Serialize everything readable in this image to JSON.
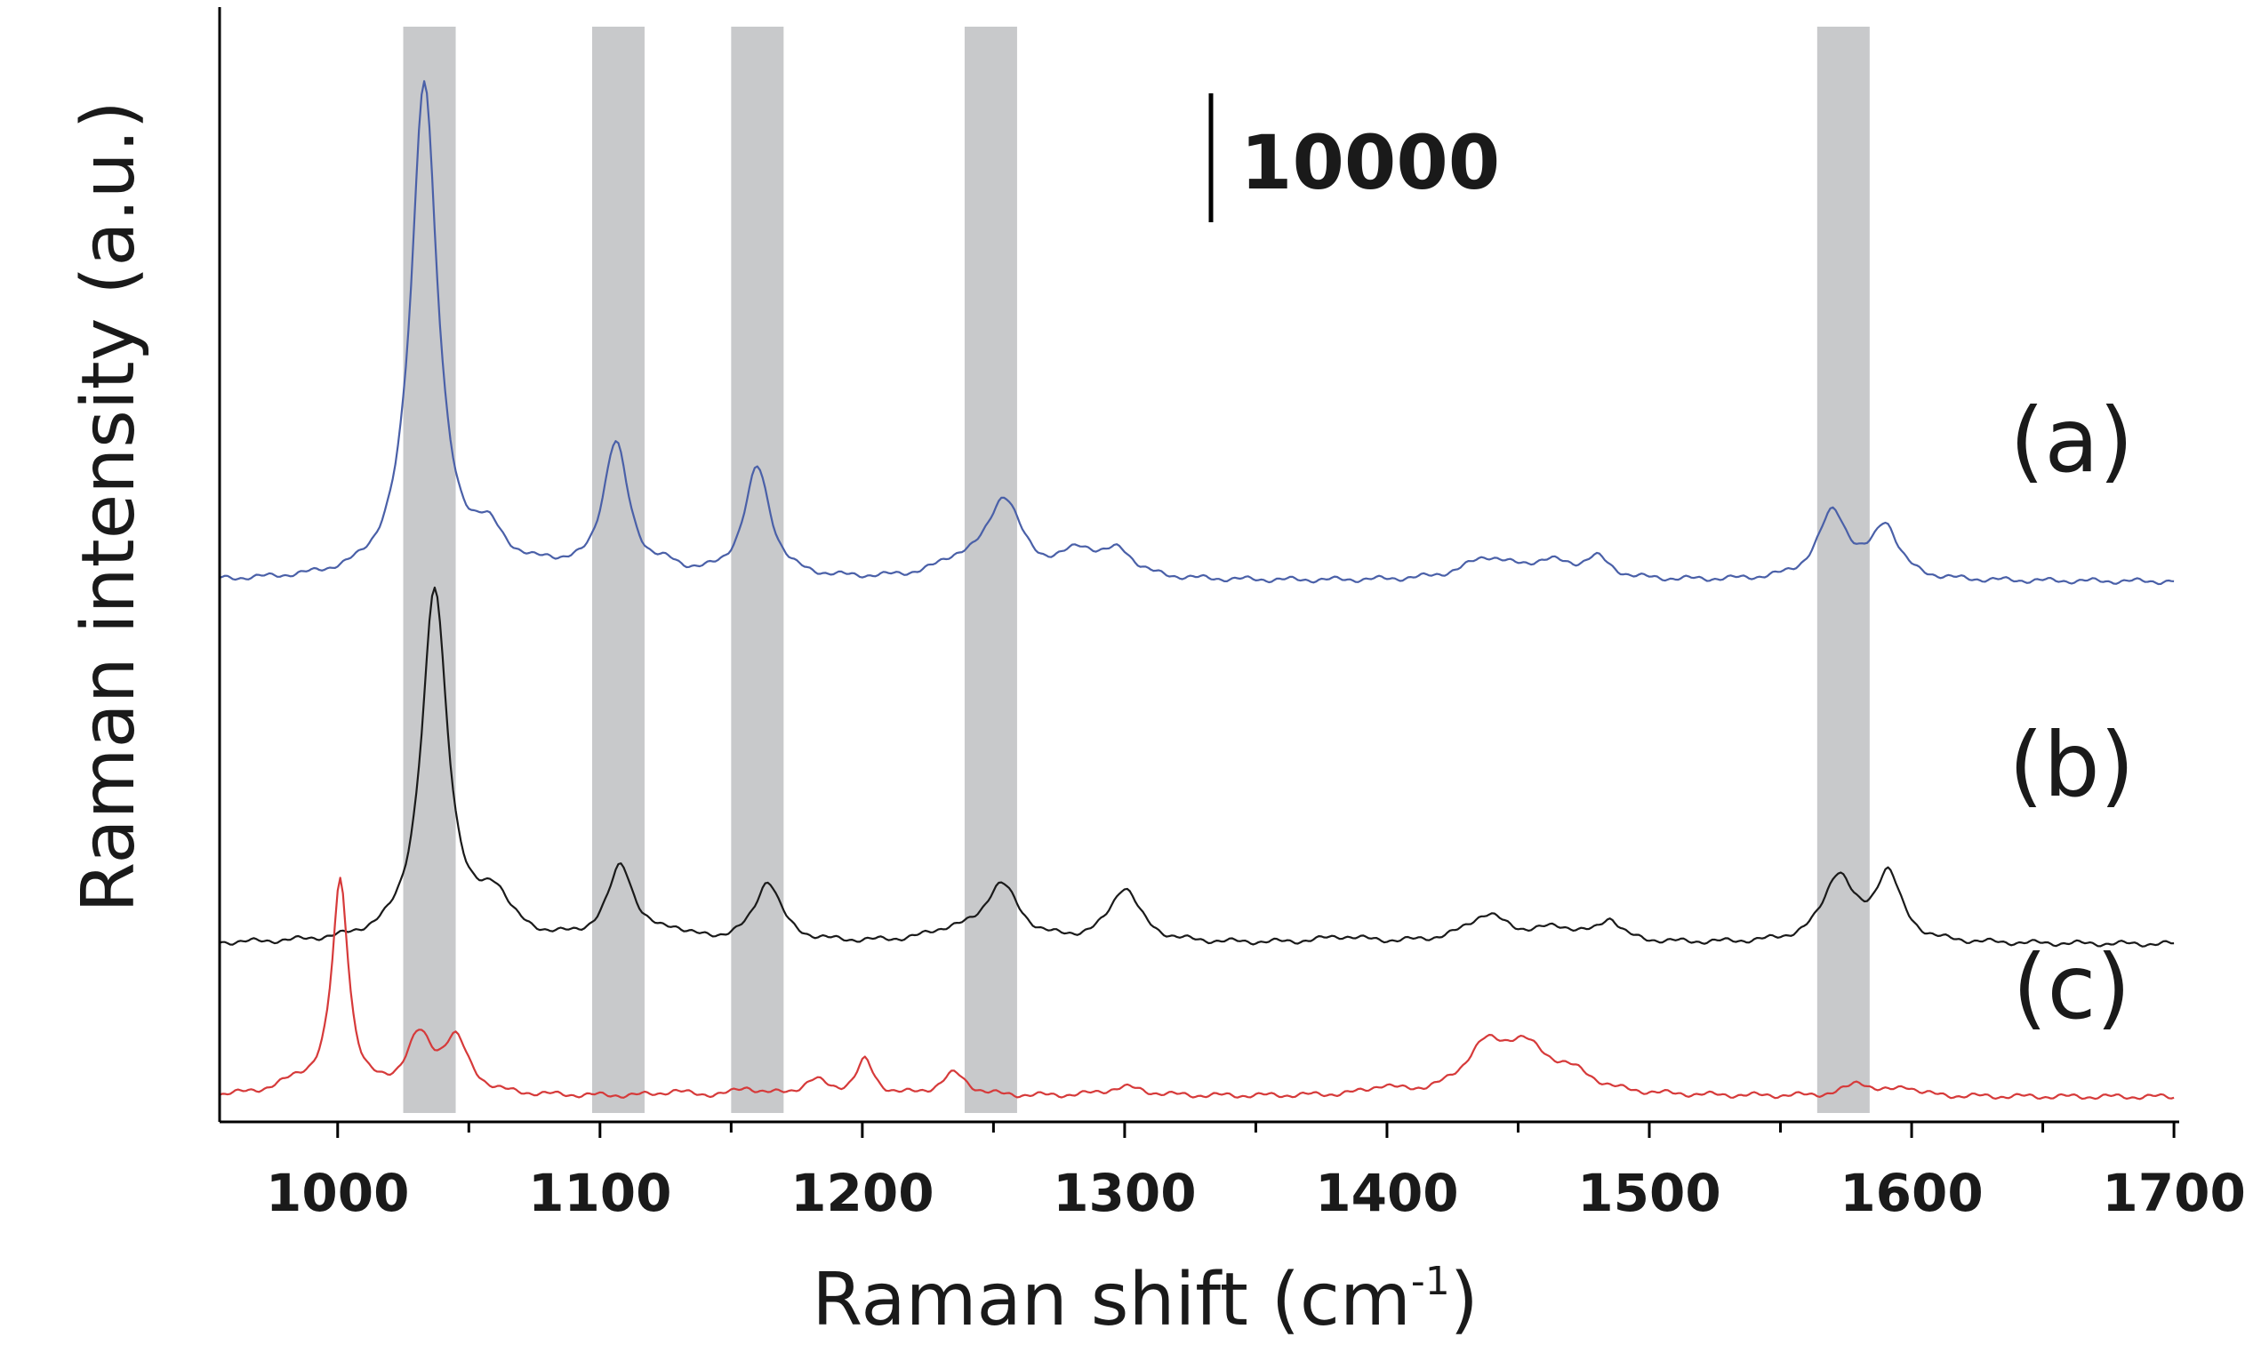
{
  "chart_data": {
    "type": "line",
    "xlabel": "Raman shift (cm",
    "xlabel_sup": "-1",
    "xlabel_close": ")",
    "ylabel": "Raman intensity (a.u.)",
    "xlim": [
      955,
      1702
    ],
    "x_ticks": [
      1000,
      1100,
      1200,
      1300,
      1400,
      1500,
      1600,
      1700
    ],
    "x_minor_step": 50,
    "grid": false,
    "y_ticks": "none",
    "scale_bar": {
      "label": "10000",
      "value": 10000
    },
    "highlight_bands": [
      {
        "from": 1025,
        "to": 1045
      },
      {
        "from": 1097,
        "to": 1117
      },
      {
        "from": 1150,
        "to": 1170
      },
      {
        "from": 1239,
        "to": 1259
      },
      {
        "from": 1564,
        "to": 1584
      }
    ],
    "series": [
      {
        "name": "(a)",
        "color": "#4a60a8",
        "offset": 2000,
        "baseline": 250,
        "peaks": [
          [
            1033,
            33000,
            6
          ],
          [
            1058,
            2400,
            8
          ],
          [
            1080,
            500,
            6
          ],
          [
            1106,
            8800,
            6
          ],
          [
            1126,
            500,
            6
          ],
          [
            1160,
            7300,
            6
          ],
          [
            1236,
            900,
            10
          ],
          [
            1254,
            5200,
            8
          ],
          [
            1283,
            1700,
            9
          ],
          [
            1298,
            1600,
            7
          ],
          [
            1438,
            1400,
            11
          ],
          [
            1462,
            1100,
            11
          ],
          [
            1480,
            1300,
            6
          ],
          [
            1570,
            4500,
            7
          ],
          [
            1590,
            3500,
            6
          ]
        ]
      },
      {
        "name": "(b)",
        "color": "#1a1a1a",
        "offset": -22000,
        "baseline": 250,
        "peaks": [
          [
            1037,
            23300,
            6
          ],
          [
            1060,
            2700,
            7
          ],
          [
            1108,
            5000,
            6
          ],
          [
            1128,
            600,
            6
          ],
          [
            1164,
            4000,
            6
          ],
          [
            1233,
            600,
            10
          ],
          [
            1253,
            3800,
            8
          ],
          [
            1300,
            3600,
            7
          ],
          [
            1383,
            400,
            10
          ],
          [
            1438,
            1800,
            10
          ],
          [
            1465,
            900,
            11
          ],
          [
            1485,
            1400,
            5
          ],
          [
            1572,
            4400,
            7
          ],
          [
            1591,
            4500,
            6
          ]
        ]
      },
      {
        "name": "(c)",
        "color": "#d63a3a",
        "offset": -32000,
        "baseline": 150,
        "peaks": [
          [
            985,
            800,
            10
          ],
          [
            1001,
            14000,
            3.8
          ],
          [
            1031,
            3600,
            6
          ],
          [
            1045,
            3500,
            6
          ],
          [
            1128,
            300,
            6
          ],
          [
            1156,
            500,
            5
          ],
          [
            1182,
            1000,
            6
          ],
          [
            1201,
            2300,
            4
          ],
          [
            1235,
            1500,
            6
          ],
          [
            1300,
            600,
            9
          ],
          [
            1398,
            500,
            6
          ],
          [
            1437,
            2700,
            9
          ],
          [
            1452,
            2900,
            11
          ],
          [
            1470,
            1200,
            11
          ],
          [
            1580,
            900,
            6
          ],
          [
            1598,
            600,
            5
          ]
        ]
      }
    ],
    "ylim": [
      -33500,
      39000
    ]
  }
}
